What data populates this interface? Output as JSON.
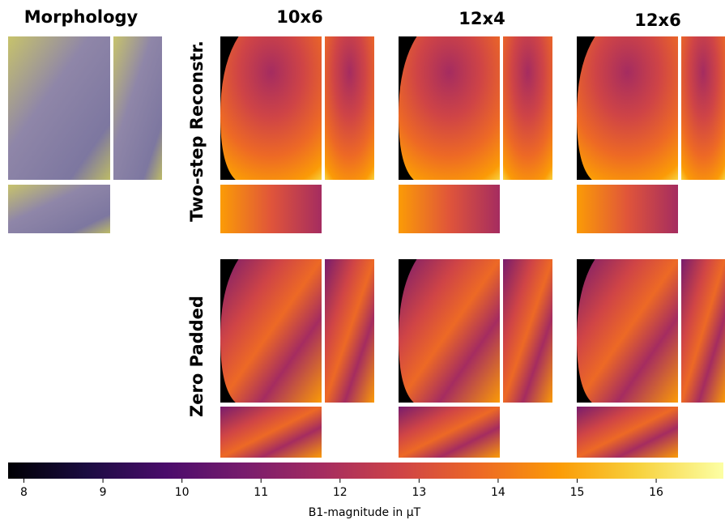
{
  "columns": [
    "Morphology",
    "10x6",
    "12x4",
    "12x6"
  ],
  "rows": [
    "Two-step Reconstr.",
    "Zero Padded"
  ],
  "colorbar": {
    "lim": [
      7.8,
      16.85
    ],
    "ticks": [
      8,
      9,
      10,
      11,
      12,
      13,
      14,
      15,
      16
    ],
    "label": "B1-magnitude in μT"
  }
}
